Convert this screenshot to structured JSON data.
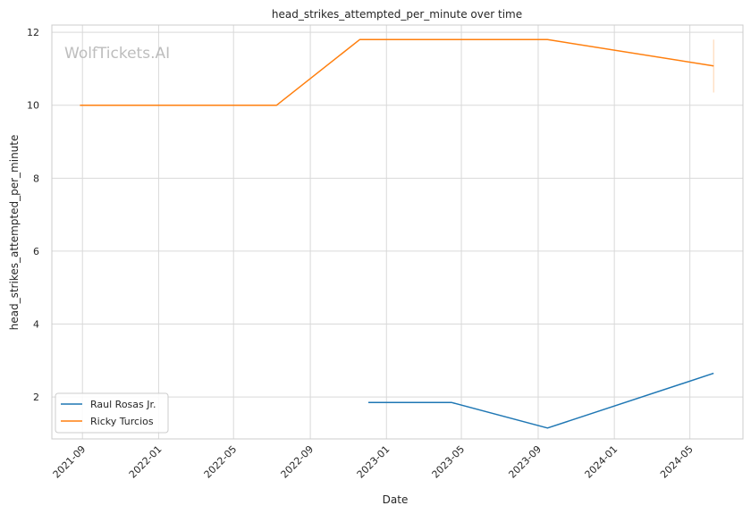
{
  "chart_data": {
    "type": "line",
    "title": "head_strikes_attempted_per_minute over time",
    "xlabel": "Date",
    "ylabel": "head_strikes_attempted_per_minute",
    "watermark": "WolfTickets.AI",
    "x_ticks": [
      "2021-09",
      "2022-01",
      "2022-05",
      "2022-09",
      "2023-01",
      "2023-05",
      "2023-09",
      "2024-01",
      "2024-05"
    ],
    "y_ticks": [
      2,
      4,
      6,
      8,
      10,
      12
    ],
    "xlim": [
      "2021-07-14",
      "2024-07-25"
    ],
    "ylim": [
      0.85,
      12.2
    ],
    "grid": true,
    "legend_position": "lower-left",
    "series": [
      {
        "name": "Raul Rosas Jr.",
        "color": "#1f77b4",
        "x": [
          "2022-12-03",
          "2023-04-15",
          "2023-09-16",
          "2024-06-08"
        ],
        "y": [
          1.85,
          1.85,
          1.15,
          2.65
        ]
      },
      {
        "name": "Ricky Turcios",
        "color": "#ff7f0e",
        "x": [
          "2021-08-28",
          "2022-07-09",
          "2022-11-19",
          "2023-09-16",
          "2024-06-08"
        ],
        "y": [
          10.0,
          10.0,
          11.8,
          11.8,
          11.08
        ],
        "error_bar": {
          "x": "2024-06-08",
          "low": 10.35,
          "high": 11.8
        }
      }
    ]
  }
}
